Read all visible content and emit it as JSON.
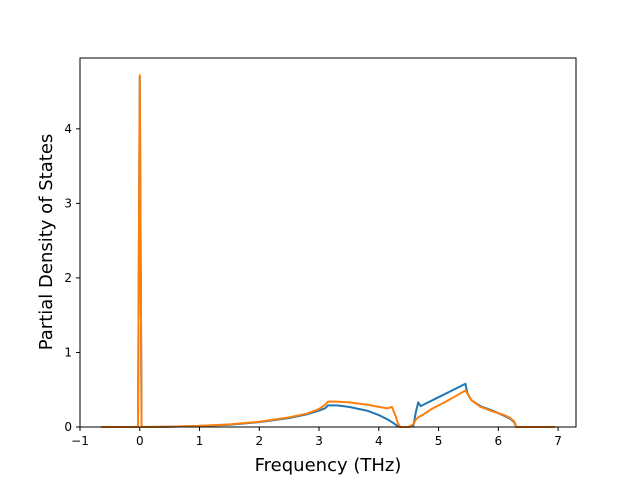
{
  "chart_data": {
    "type": "line",
    "title": "",
    "xlabel": "Frequency (THz)",
    "ylabel": "Partial Density of States",
    "xlim": [
      -1,
      7.3
    ],
    "ylim": [
      0,
      4.95
    ],
    "xticks": [
      -1,
      0,
      1,
      2,
      3,
      4,
      5,
      6,
      7
    ],
    "yticks": [
      0,
      1,
      2,
      3,
      4
    ],
    "grid": false,
    "legend": "none",
    "series": [
      {
        "color": "#1f77b4",
        "x": [
          -0.65,
          -0.05,
          -0.03,
          0.0,
          0.03,
          0.05,
          0.5,
          1.0,
          1.5,
          2.0,
          2.5,
          2.8,
          3.0,
          3.1,
          3.15,
          3.3,
          3.5,
          3.8,
          4.0,
          4.15,
          4.25,
          4.32,
          4.36,
          4.5,
          4.58,
          4.62,
          4.66,
          4.7,
          4.75,
          4.8,
          5.0,
          5.2,
          5.4,
          5.45,
          5.48,
          5.55,
          5.7,
          5.9,
          6.1,
          6.2,
          6.27,
          6.3,
          6.5,
          6.95
        ],
        "y": [
          0,
          0,
          0,
          4.7,
          0,
          0,
          0.004,
          0.015,
          0.03,
          0.065,
          0.12,
          0.17,
          0.22,
          0.25,
          0.29,
          0.29,
          0.27,
          0.22,
          0.16,
          0.1,
          0.05,
          0.01,
          0,
          0,
          0.02,
          0.2,
          0.33,
          0.28,
          0.3,
          0.32,
          0.4,
          0.48,
          0.56,
          0.58,
          0.46,
          0.36,
          0.28,
          0.22,
          0.15,
          0.11,
          0.06,
          0,
          0,
          0
        ]
      },
      {
        "color": "#ff7f0e",
        "x": [
          -0.65,
          -0.05,
          -0.03,
          0.0,
          0.03,
          0.05,
          0.5,
          1.0,
          1.5,
          2.0,
          2.5,
          2.8,
          3.0,
          3.1,
          3.15,
          3.3,
          3.5,
          3.8,
          4.0,
          4.15,
          4.22,
          4.28,
          4.32,
          4.36,
          4.5,
          4.58,
          4.62,
          4.66,
          4.75,
          4.9,
          5.1,
          5.3,
          5.45,
          5.48,
          5.55,
          5.7,
          5.9,
          6.1,
          6.2,
          6.27,
          6.3,
          6.5,
          6.95
        ],
        "y": [
          0,
          0,
          0,
          4.72,
          0,
          0,
          0.004,
          0.015,
          0.035,
          0.07,
          0.13,
          0.18,
          0.24,
          0.3,
          0.34,
          0.34,
          0.33,
          0.3,
          0.27,
          0.25,
          0.27,
          0.15,
          0.05,
          0,
          0,
          0.04,
          0.1,
          0.13,
          0.17,
          0.25,
          0.33,
          0.42,
          0.49,
          0.45,
          0.36,
          0.27,
          0.21,
          0.16,
          0.12,
          0.07,
          0,
          0,
          0
        ]
      }
    ]
  }
}
